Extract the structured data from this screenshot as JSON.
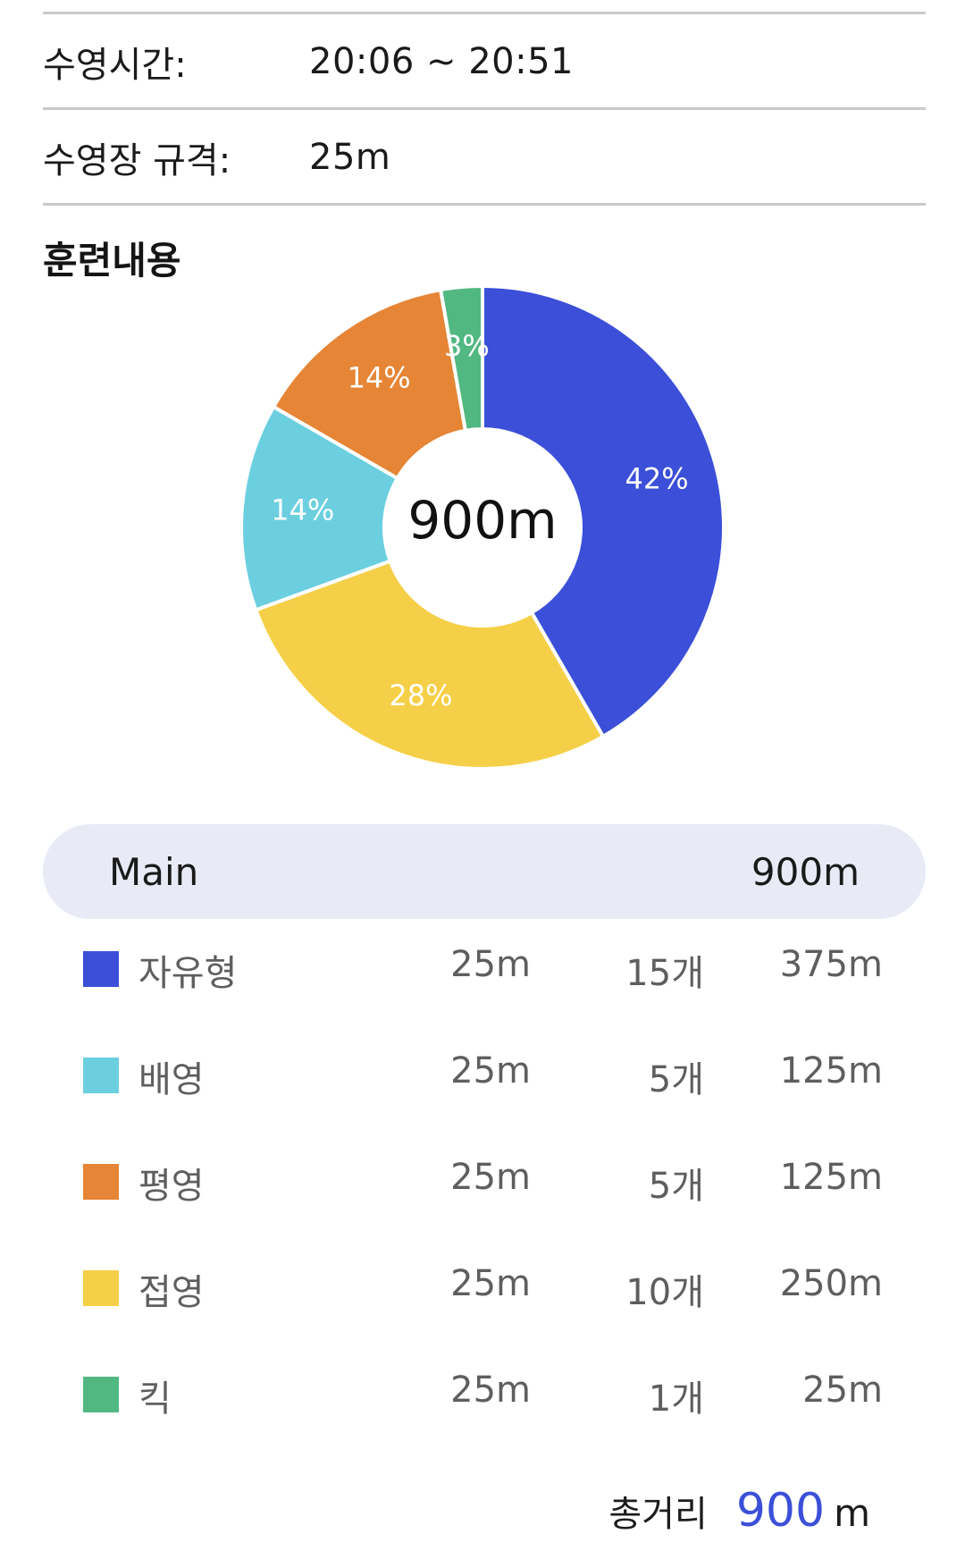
{
  "info": {
    "time_label": "수영시간:",
    "time_value": "20:06 ~ 20:51",
    "pool_label": "수영장 규격:",
    "pool_value": "25m"
  },
  "section_title": "훈련내용",
  "chart_data": {
    "type": "pie",
    "donut": true,
    "center_label": "900m",
    "start_angle": "top, clockwise",
    "slices": [
      {
        "name": "자유형",
        "value": 375,
        "label": "42%",
        "color": "#3b4fd8"
      },
      {
        "name": "접영",
        "value": 250,
        "label": "28%",
        "color": "#f5cf47"
      },
      {
        "name": "배영",
        "value": 125,
        "label": "14%",
        "color": "#6bcfe0"
      },
      {
        "name": "평영",
        "value": 125,
        "label": "14%",
        "color": "#e58535"
      },
      {
        "name": "킥",
        "value": 25,
        "label": "3%",
        "color": "#52b882"
      }
    ]
  },
  "main": {
    "label": "Main",
    "distance": "900m"
  },
  "strokes": [
    {
      "name": "자유형",
      "pool": "25m",
      "count": "15개",
      "distance": "375m",
      "color": "#3b4fd8"
    },
    {
      "name": "배영",
      "pool": "25m",
      "count": "5개",
      "distance": "125m",
      "color": "#6bcfe0"
    },
    {
      "name": "평영",
      "pool": "25m",
      "count": "5개",
      "distance": "125m",
      "color": "#e58535"
    },
    {
      "name": "접영",
      "pool": "25m",
      "count": "10개",
      "distance": "250m",
      "color": "#f5cf47"
    },
    {
      "name": "킥",
      "pool": "25m",
      "count": "1개",
      "distance": "25m",
      "color": "#52b882"
    }
  ],
  "total": {
    "label": "총거리",
    "value": "900",
    "unit": "m"
  }
}
